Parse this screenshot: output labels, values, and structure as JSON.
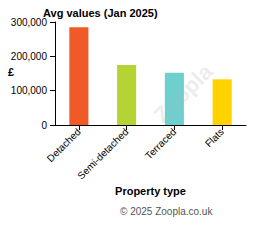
{
  "chart_data": {
    "type": "bar",
    "title": "Avg values (Jan 2025)",
    "y_label": "£",
    "x_label": "Property type",
    "categories": [
      "Detached",
      "Semi-detached",
      "Terraced",
      "Flats"
    ],
    "values": [
      285000,
      175000,
      152000,
      133000
    ],
    "colors": [
      "#f05a28",
      "#b5d334",
      "#6fcfcf",
      "#ffd200"
    ],
    "ylim": [
      0,
      300000
    ],
    "yticks": [
      0,
      {
        "value": 100000,
        "label": "100,000"
      },
      {
        "value": 200000,
        "label": "200,000"
      },
      {
        "value": 300000,
        "label": "300,000"
      }
    ],
    "grid": false,
    "annotations": [
      "© 2025 Zoopla.co.uk",
      "Zoopla"
    ]
  }
}
